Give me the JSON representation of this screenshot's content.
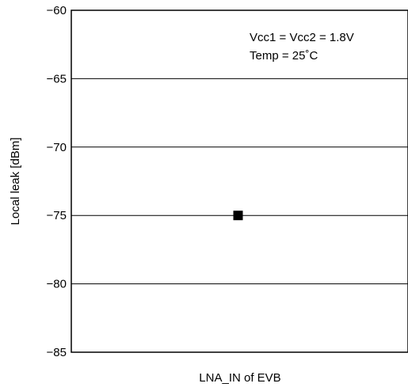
{
  "chart_data": {
    "type": "scatter",
    "title": "",
    "xlabel": "LNA_IN of EVB",
    "ylabel": "Local leak [dBm]",
    "ylim": [
      -85,
      -60
    ],
    "yticks": [
      "-60",
      "-65",
      "-70",
      "-75",
      "-80",
      "-85"
    ],
    "grid": true,
    "points": [
      {
        "x": "LNA_IN of EVB",
        "y": -75
      }
    ],
    "annotations": [
      "Vcc1 = Vcc2 = 1.8V",
      "Temp = 25˚C"
    ],
    "marker_color": "#000000"
  }
}
